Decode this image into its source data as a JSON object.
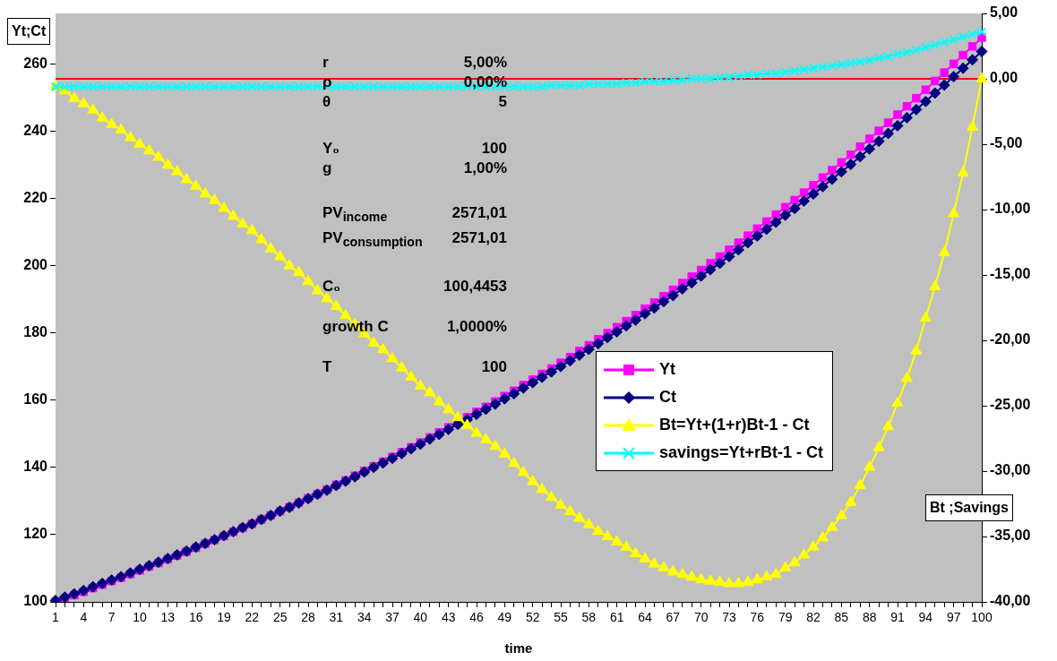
{
  "chart_data": {
    "type": "line",
    "xlabel": "time",
    "ylabel": "Yt;Ct",
    "y2label": "Bt ;Savings",
    "categories": [
      "1",
      null,
      null,
      "4",
      null,
      null,
      "7",
      null,
      null,
      "10",
      null,
      null,
      "13",
      null,
      null,
      "16",
      null,
      null,
      "19",
      null,
      null,
      "22",
      null,
      null,
      "25",
      null,
      null,
      "28",
      null,
      null,
      "31",
      null,
      null,
      "34",
      null,
      null,
      "37",
      null,
      null,
      "40",
      null,
      null,
      "43",
      null,
      null,
      "46",
      null,
      null,
      "49",
      null,
      null,
      "52",
      null,
      null,
      "55",
      null,
      null,
      "58",
      null,
      null,
      "61",
      null,
      null,
      "64",
      null,
      null,
      "67",
      null,
      null,
      "70",
      null,
      null,
      "73",
      null,
      null,
      "76",
      null,
      null,
      "79",
      null,
      null,
      "82",
      null,
      null,
      "85",
      null,
      null,
      "88",
      null,
      null,
      "91",
      null,
      null,
      "94",
      null,
      null,
      "97",
      null,
      null,
      "100"
    ],
    "series": [
      {
        "name": "Yt",
        "color": "#ff00ff",
        "marker": "square",
        "values": [
          100.0,
          101.0,
          102.0,
          103.0,
          104.1,
          105.1,
          106.2,
          107.2,
          108.3,
          109.4,
          110.5,
          111.6,
          112.7,
          113.8,
          114.9,
          116.1,
          117.3,
          118.4,
          119.6,
          120.8,
          122.0,
          123.2,
          124.5,
          125.7,
          127.0,
          128.2,
          129.5,
          130.8,
          132.1,
          133.4,
          134.8,
          136.1,
          137.5,
          138.9,
          140.3,
          141.7,
          143.1,
          144.5,
          146.0,
          147.4,
          148.9,
          150.4,
          151.9,
          153.4,
          154.9,
          156.5,
          158.0,
          159.6,
          161.2,
          162.8,
          164.5,
          166.1,
          167.8,
          169.4,
          171.1,
          172.8,
          174.6,
          176.3,
          178.1,
          179.9,
          181.7,
          183.5,
          185.3,
          187.2,
          189.0,
          190.9,
          192.8,
          194.8,
          196.7,
          198.7,
          200.7,
          202.7,
          204.7,
          206.8,
          208.9,
          211.0,
          213.1,
          215.2,
          217.4,
          219.5,
          221.7,
          223.9,
          226.2,
          228.4,
          230.7,
          233.0,
          235.4,
          237.7,
          240.1,
          242.5,
          244.9,
          247.4,
          249.8,
          252.3,
          254.9,
          257.4,
          260.0,
          262.6,
          265.2,
          267.8
        ]
      },
      {
        "name": "Ct",
        "color": "#000080",
        "marker": "diamond",
        "values": [
          100.4,
          101.4,
          102.4,
          103.4,
          104.5,
          105.5,
          106.5,
          107.5,
          108.6,
          109.7,
          110.8,
          111.8,
          112.9,
          114.0,
          115.1,
          116.3,
          117.4,
          118.5,
          119.7,
          120.9,
          122.1,
          123.2,
          124.5,
          125.7,
          127.0,
          128.1,
          129.4,
          130.7,
          132.0,
          133.2,
          134.6,
          135.9,
          137.2,
          138.6,
          140.0,
          141.3,
          142.7,
          144.1,
          145.5,
          146.9,
          148.4,
          149.8,
          151.3,
          152.8,
          154.2,
          155.8,
          157.3,
          158.8,
          160.4,
          161.9,
          163.6,
          165.2,
          166.8,
          168.4,
          170.0,
          171.7,
          173.4,
          175.1,
          176.8,
          178.6,
          180.3,
          182.1,
          183.8,
          185.7,
          187.4,
          189.3,
          191.1,
          193.1,
          194.9,
          196.9,
          198.8,
          200.7,
          202.7,
          204.7,
          206.8,
          208.8,
          210.8,
          212.9,
          215.0,
          217.0,
          219.2,
          221.3,
          223.5,
          225.7,
          227.9,
          230.1,
          232.4,
          234.7,
          237.0,
          239.3,
          241.6,
          244.0,
          246.4,
          248.8,
          251.3,
          253.7,
          256.2,
          258.7,
          261.2,
          263.7
        ]
      },
      {
        "name": "Bt=Yt+(1+r)Bt-1 - Ct",
        "color": "#ffff00",
        "marker": "triangle",
        "axis": "y2",
        "values": [
          -0.6,
          -0.9,
          -1.5,
          -1.9,
          -2.4,
          -3.0,
          -3.5,
          -3.9,
          -4.5,
          -5.0,
          -5.5,
          -6.0,
          -6.6,
          -7.1,
          -7.7,
          -8.2,
          -8.8,
          -9.3,
          -9.9,
          -10.5,
          -11.1,
          -11.6,
          -12.3,
          -13.0,
          -13.6,
          -14.3,
          -14.8,
          -15.5,
          -16.2,
          -16.8,
          -17.4,
          -18.1,
          -18.8,
          -19.5,
          -20.2,
          -20.7,
          -21.4,
          -22.1,
          -22.8,
          -23.5,
          -24.0,
          -24.7,
          -25.3,
          -25.9,
          -26.5,
          -27.1,
          -27.6,
          -28.1,
          -28.7,
          -29.4,
          -30.1,
          -30.8,
          -31.4,
          -32.0,
          -32.6,
          -33.1,
          -33.6,
          -34.1,
          -34.6,
          -35.0,
          -35.4,
          -35.8,
          -36.3,
          -36.7,
          -37.1,
          -37.4,
          -37.7,
          -37.9,
          -38.1,
          -38.3,
          -38.4,
          -38.5,
          -38.6,
          -38.6,
          -38.5,
          -38.3,
          -38.1,
          -37.9,
          -37.4,
          -37.0,
          -36.4,
          -35.8,
          -35.1,
          -34.3,
          -33.4,
          -32.4,
          -31.1,
          -29.7,
          -28.2,
          -26.6,
          -24.8,
          -22.9,
          -20.8,
          -18.3,
          -15.9,
          -13.3,
          -10.3,
          -7.2,
          -3.7,
          0.0
        ]
      },
      {
        "name": "savings=Yt+rBt-1 - Ct",
        "color": "#00ffff",
        "marker": "cross",
        "axis": "y2",
        "values": [
          -0.6,
          -0.6,
          -0.6,
          -0.6,
          -0.6,
          -0.6,
          -0.6,
          -0.6,
          -0.6,
          -0.6,
          -0.6,
          -0.6,
          -0.6,
          -0.6,
          -0.6,
          -0.6,
          -0.6,
          -0.6,
          -0.6,
          -0.6,
          -0.6,
          -0.6,
          -0.6,
          -0.6,
          -0.6,
          -0.6,
          -0.6,
          -0.6,
          -0.6,
          -0.6,
          -0.6,
          -0.6,
          -0.6,
          -0.6,
          -0.6,
          -0.6,
          -0.6,
          -0.6,
          -0.6,
          -0.6,
          -0.6,
          -0.6,
          -0.6,
          -0.6,
          -0.6,
          -0.6,
          -0.6,
          -0.6,
          -0.6,
          -0.6,
          -0.6,
          -0.6,
          -0.6,
          -0.5,
          -0.5,
          -0.5,
          -0.5,
          -0.4,
          -0.4,
          -0.4,
          -0.4,
          -0.3,
          -0.3,
          -0.2,
          -0.2,
          -0.2,
          -0.1,
          -0.1,
          0.0,
          0.0,
          0.0,
          0.1,
          0.1,
          0.2,
          0.3,
          0.3,
          0.4,
          0.4,
          0.5,
          0.6,
          0.7,
          0.8,
          0.9,
          1.0,
          1.1,
          1.2,
          1.3,
          1.4,
          1.6,
          1.7,
          1.9,
          2.0,
          2.2,
          2.4,
          2.6,
          2.8,
          3.0,
          3.2,
          3.4,
          3.6
        ]
      }
    ],
    "ylim": [
      100,
      275
    ],
    "yticks": [
      100,
      120,
      140,
      160,
      180,
      200,
      220,
      240,
      260
    ],
    "y2lim": [
      -40,
      5
    ],
    "y2ticks": [
      {
        "value": 5,
        "label": "5,00"
      },
      {
        "value": 0,
        "label": "0,00"
      },
      {
        "value": -5,
        "label": "-5,00"
      },
      {
        "value": -10,
        "label": "-10,00"
      },
      {
        "value": -15,
        "label": "-15,00"
      },
      {
        "value": -20,
        "label": "-20,00"
      },
      {
        "value": -25,
        "label": "-25,00"
      },
      {
        "value": -30,
        "label": "-30,00"
      },
      {
        "value": -35,
        "label": "-35,00"
      },
      {
        "value": -40,
        "label": "-40,00"
      }
    ],
    "ref_lines": [
      {
        "axis": "y2",
        "value": 0,
        "color": "#ff0000"
      }
    ],
    "legend": "center right",
    "annotations": [
      "r",
      "5,00%",
      "ρ",
      "0,00%",
      "θ",
      "5",
      "Y₀",
      "100",
      "g",
      "1,00%",
      "PV$_{income}$",
      "2571,01",
      "PV$_{consumption}$",
      "2571,01",
      "C₀",
      "100,4453",
      "growth C",
      "1,0000%",
      "T",
      "100"
    ]
  }
}
